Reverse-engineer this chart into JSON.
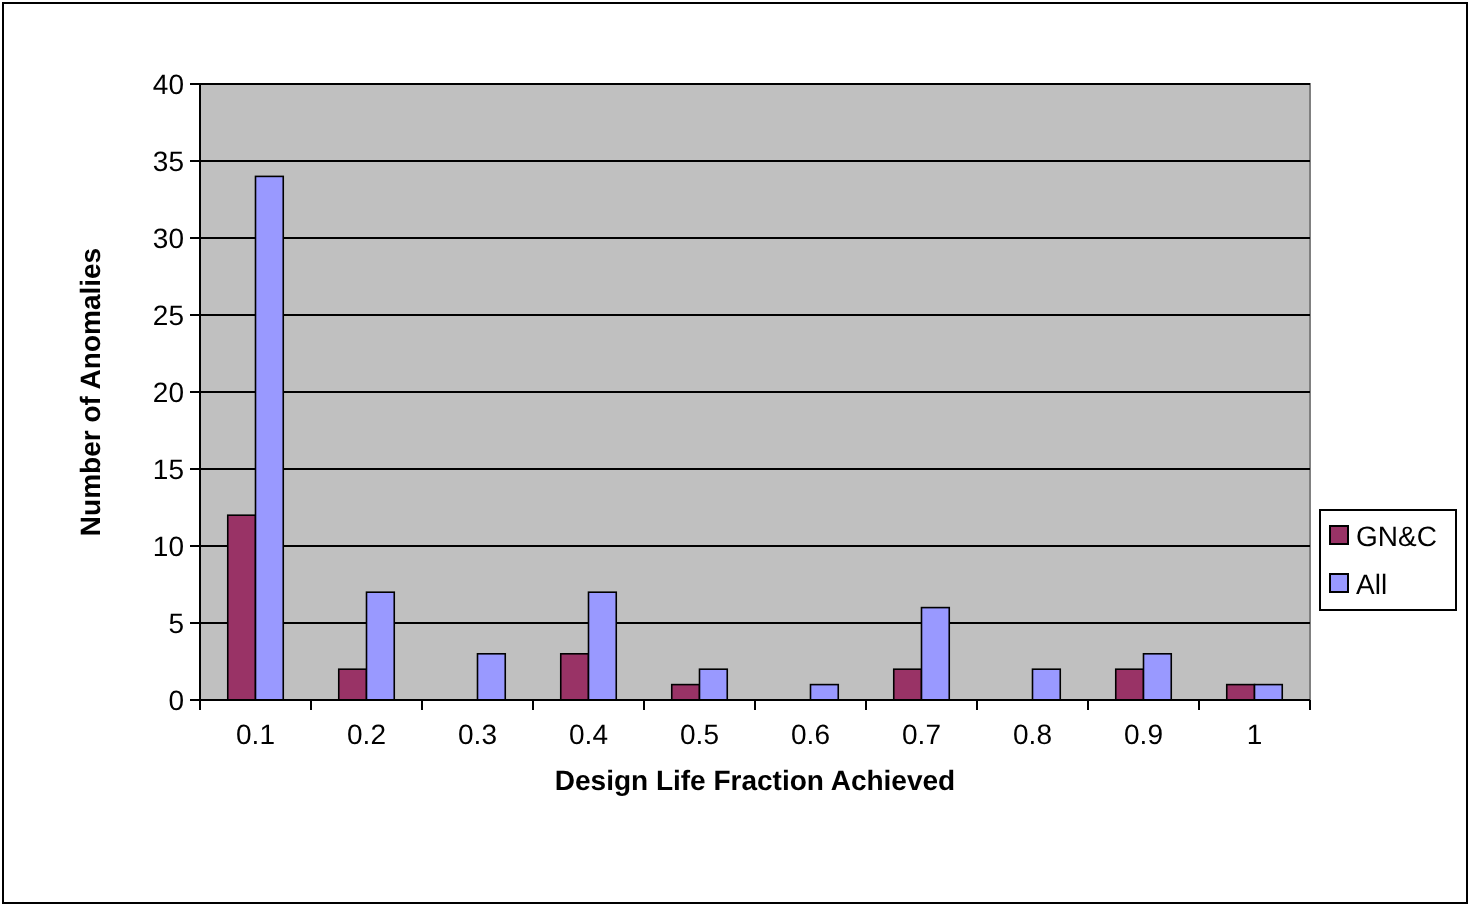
{
  "chart_data": {
    "type": "bar",
    "xlabel": "Design Life Fraction Achieved",
    "ylabel": "Number of Anomalies",
    "categories": [
      "0.1",
      "0.2",
      "0.3",
      "0.4",
      "0.5",
      "0.6",
      "0.7",
      "0.8",
      "0.9",
      "1"
    ],
    "series": [
      {
        "name": "GN&C",
        "color": "#993366",
        "values": [
          12,
          2,
          0,
          3,
          1,
          0,
          2,
          0,
          2,
          1
        ]
      },
      {
        "name": "All",
        "color": "#9999ff",
        "values": [
          34,
          7,
          3,
          7,
          2,
          1,
          6,
          2,
          3,
          1
        ]
      }
    ],
    "ylim": [
      0,
      40
    ],
    "yticks": [
      0,
      5,
      10,
      15,
      20,
      25,
      30,
      35,
      40
    ],
    "grid": "y",
    "legend": "right"
  }
}
